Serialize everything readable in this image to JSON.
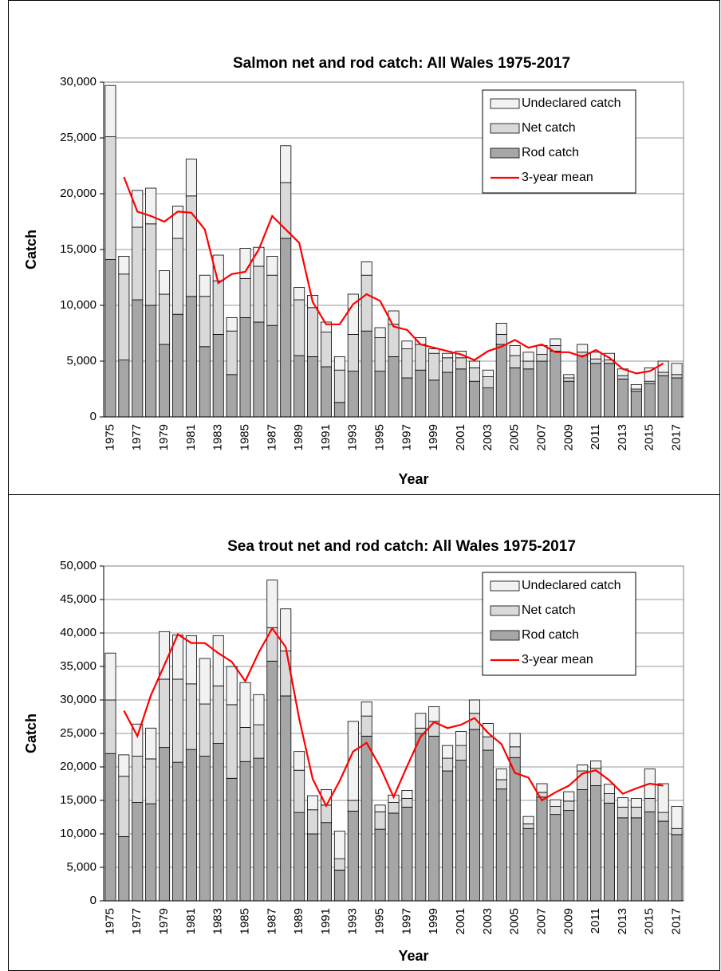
{
  "chart_data": [
    {
      "type": "bar",
      "stacked": true,
      "title": "Salmon net and rod catch: All Wales 1975-2017",
      "x_label": "Year",
      "y_label": "Catch",
      "categories": [
        "1975",
        null,
        "1977",
        null,
        "1979",
        null,
        "1981",
        null,
        "1983",
        null,
        "1985",
        null,
        "1987",
        null,
        "1989",
        null,
        "1991",
        null,
        "1993",
        null,
        "1995",
        null,
        "1997",
        null,
        "1999",
        null,
        "2001",
        null,
        "2003",
        null,
        "2005",
        null,
        "2007",
        null,
        "2009",
        null,
        "2011",
        null,
        "2013",
        null,
        "2015",
        null,
        "2017"
      ],
      "ylim": [
        0,
        30000
      ],
      "yticks": [
        0,
        {
          "value": 5000,
          "label": "5,000"
        },
        {
          "value": 10000,
          "label": "10,000"
        },
        {
          "value": 15000,
          "label": "15,000"
        },
        {
          "value": 20000,
          "label": "20,000"
        },
        {
          "value": 25000,
          "label": "25,000"
        },
        {
          "value": 30000,
          "label": "30,000"
        }
      ],
      "grid": true,
      "legend": "upper right",
      "series": [
        {
          "name": "Undeclared catch",
          "color": "#f2f2f2",
          "values": [
            4600,
            1600,
            3300,
            3200,
            2100,
            2900,
            3300,
            1900,
            2300,
            1200,
            2700,
            1700,
            1700,
            3300,
            1100,
            1100,
            900,
            1200,
            3600,
            1200,
            900,
            1200,
            700,
            600,
            400,
            400,
            600,
            600,
            600,
            1000,
            900,
            800,
            800,
            600,
            300,
            700,
            600,
            600,
            600,
            400,
            1200,
            1000,
            1000
          ]
        },
        {
          "name": "Net catch",
          "color": "#d9d9d9",
          "values": [
            11000,
            7700,
            6500,
            7300,
            4500,
            6800,
            9000,
            4500,
            4800,
            3900,
            3500,
            5000,
            4500,
            5000,
            5000,
            4400,
            3100,
            2900,
            3300,
            5000,
            3000,
            2900,
            2600,
            2300,
            2400,
            1300,
            1000,
            1200,
            1000,
            900,
            1100,
            700,
            600,
            500,
            300,
            300,
            400,
            300,
            300,
            200,
            200,
            300,
            300
          ]
        },
        {
          "name": "Rod catch",
          "color": "#a6a6a6",
          "values": [
            14100,
            5100,
            10500,
            10000,
            6500,
            9200,
            10800,
            6300,
            7400,
            3800,
            8900,
            8500,
            8200,
            16000,
            5500,
            5400,
            4500,
            1300,
            4100,
            7700,
            4100,
            5400,
            3500,
            4200,
            3300,
            4000,
            4300,
            3200,
            2600,
            6500,
            4400,
            4300,
            5000,
            5900,
            3200,
            5500,
            4800,
            4800,
            3400,
            2300,
            3000,
            3700,
            3500
          ]
        },
        {
          "name": "3-year mean",
          "type": "line",
          "color": "#ff0000",
          "values": [
            null,
            21500,
            18400,
            18000,
            17500,
            18400,
            18300,
            16800,
            12000,
            12800,
            13000,
            15000,
            18000,
            16800,
            15600,
            10300,
            8300,
            8300,
            10100,
            11000,
            10400,
            8100,
            7800,
            6500,
            6200,
            5900,
            5600,
            5100,
            5900,
            6300,
            6900,
            6200,
            6500,
            5800,
            5800,
            5400,
            6000,
            5300,
            4300,
            3900,
            4100,
            4800,
            null
          ]
        }
      ]
    },
    {
      "type": "bar",
      "stacked": true,
      "title": "Sea trout net and rod catch: All Wales 1975-2017",
      "x_label": "Year",
      "y_label": "Catch",
      "categories": [
        "1975",
        null,
        "1977",
        null,
        "1979",
        null,
        "1981",
        null,
        "1983",
        null,
        "1985",
        null,
        "1987",
        null,
        "1989",
        null,
        "1991",
        null,
        "1993",
        null,
        "1995",
        null,
        "1997",
        null,
        "1999",
        null,
        "2001",
        null,
        "2003",
        null,
        "2005",
        null,
        "2007",
        null,
        "2009",
        null,
        "2011",
        null,
        "2013",
        null,
        "2015",
        null,
        "2017"
      ],
      "ylim": [
        0,
        50000
      ],
      "yticks": [
        0,
        {
          "value": 5000,
          "label": "5,000"
        },
        {
          "value": 10000,
          "label": "10,000"
        },
        {
          "value": 15000,
          "label": "15,000"
        },
        {
          "value": 20000,
          "label": "20,000"
        },
        {
          "value": 25000,
          "label": "25,000"
        },
        {
          "value": 30000,
          "label": "30,000"
        },
        {
          "value": 35000,
          "label": "35,000"
        },
        {
          "value": 40000,
          "label": "40,000"
        },
        {
          "value": 45000,
          "label": "45,000"
        },
        {
          "value": 50000,
          "label": "50,000"
        }
      ],
      "grid": true,
      "legend": "upper right",
      "series": [
        {
          "name": "Undeclared catch",
          "color": "#f2f2f2",
          "values": [
            7000,
            3200,
            4800,
            4600,
            7100,
            6600,
            7200,
            6800,
            7500,
            5700,
            6700,
            4500,
            7100,
            6300,
            2800,
            2100,
            2300,
            4100,
            11800,
            2100,
            1000,
            1100,
            1200,
            2200,
            2200,
            1900,
            2100,
            2000,
            2000,
            1600,
            2000,
            1100,
            1300,
            1000,
            1400,
            900,
            1100,
            1400,
            1400,
            1300,
            4400,
            4300,
            3300
          ]
        },
        {
          "name": "Net catch",
          "color": "#d9d9d9",
          "values": [
            8000,
            9000,
            6900,
            6700,
            10200,
            12400,
            9800,
            7800,
            8600,
            11000,
            5100,
            5000,
            5000,
            6700,
            6300,
            3600,
            2600,
            1700,
            1600,
            3000,
            2600,
            1600,
            1300,
            800,
            2200,
            1900,
            2200,
            2400,
            2000,
            1400,
            1600,
            700,
            700,
            1200,
            1400,
            2800,
            2600,
            1400,
            1600,
            1600,
            2000,
            1300,
            900
          ]
        },
        {
          "name": "Rod catch",
          "color": "#a6a6a6",
          "values": [
            22000,
            9600,
            14700,
            14500,
            22900,
            20700,
            22600,
            21600,
            23500,
            18300,
            20800,
            21300,
            35800,
            30600,
            13200,
            10000,
            11700,
            4600,
            13400,
            24600,
            10700,
            13100,
            14000,
            25000,
            24600,
            19400,
            21000,
            25600,
            22500,
            16700,
            21400,
            10800,
            15500,
            12900,
            13500,
            16600,
            17200,
            14600,
            12400,
            12400,
            13300,
            11900,
            9900
          ]
        },
        {
          "name": "3-year mean",
          "type": "line",
          "color": "#ff0000",
          "values": [
            null,
            28400,
            24600,
            30700,
            35200,
            39800,
            38500,
            38500,
            37000,
            35700,
            32800,
            37100,
            40700,
            37900,
            27200,
            18200,
            14200,
            17900,
            22300,
            23600,
            20000,
            15500,
            20100,
            24500,
            26700,
            25800,
            26300,
            27300,
            25100,
            23400,
            19100,
            18400,
            15000,
            16200,
            17200,
            19000,
            19500,
            18000,
            16000,
            16800,
            17500,
            17200,
            null
          ]
        }
      ]
    }
  ]
}
